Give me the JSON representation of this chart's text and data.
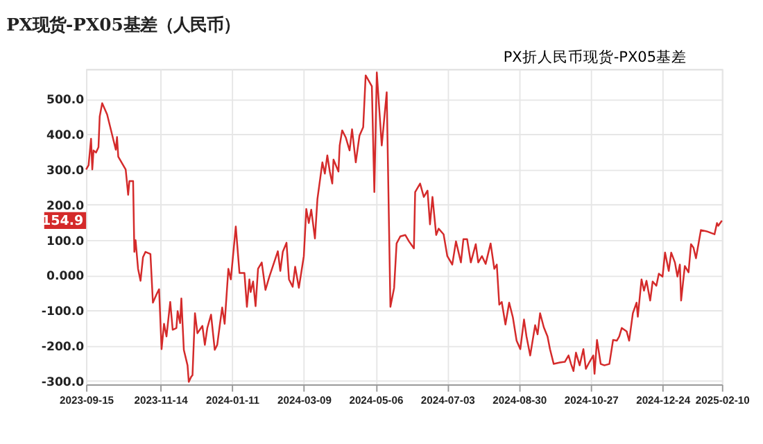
{
  "chart_data": {
    "type": "line",
    "title": "PX现货-PX05基差（人民币）",
    "legend": "top right",
    "grid": true,
    "marker": "none",
    "line_style": "solid",
    "xlim": [
      "2023-09-15",
      "2025-02-10"
    ],
    "xticks": [
      "2023-09-15",
      "2023-11-14",
      "2024-01-11",
      "2024-03-09",
      "2024-05-06",
      "2024-07-03",
      "2024-08-30",
      "2024-10-27",
      "2024-12-24",
      "2025-02-10"
    ],
    "ylim": [
      -310,
      585
    ],
    "yticks": [
      {
        "value": -300,
        "label": "-300.0"
      },
      {
        "value": -200,
        "label": "-200.0"
      },
      {
        "value": -100,
        "label": "-100.0"
      },
      {
        "value": 0,
        "label": "0.000"
      },
      {
        "value": 100,
        "label": "100.0"
      },
      {
        "value": 200,
        "label": "200.0"
      },
      {
        "value": 300,
        "label": "300.0"
      },
      {
        "value": 400,
        "label": "400.0"
      },
      {
        "value": 500,
        "label": "500.0"
      }
    ],
    "annotations": [
      "154.9"
    ],
    "x": [
      "2023-09-15",
      "2023-09-17",
      "2023-09-19",
      "2023-09-20",
      "2023-09-21",
      "2023-09-23",
      "2023-09-25",
      "2023-09-26",
      "2023-09-28",
      "2023-10-02",
      "2023-10-09",
      "2023-10-10",
      "2023-10-11",
      "2023-10-14",
      "2023-10-17",
      "2023-10-19",
      "2023-10-20",
      "2023-10-23",
      "2023-10-24",
      "2023-10-25",
      "2023-10-27",
      "2023-10-29",
      "2023-10-31",
      "2023-11-02",
      "2023-11-06",
      "2023-11-08",
      "2023-11-11",
      "2023-11-13",
      "2023-11-15",
      "2023-11-17",
      "2023-11-19",
      "2023-11-22",
      "2023-11-24",
      "2023-11-27",
      "2023-11-28",
      "2023-11-30",
      "2023-12-01",
      "2023-12-03",
      "2023-12-06",
      "2023-12-07",
      "2023-12-09",
      "2023-12-10",
      "2023-12-12",
      "2023-12-14",
      "2023-12-18",
      "2023-12-20",
      "2023-12-22",
      "2023-12-25",
      "2023-12-28",
      "2023-12-30",
      "2024-01-01",
      "2024-01-03",
      "2024-01-05",
      "2024-01-08",
      "2024-01-10",
      "2024-01-14",
      "2024-01-17",
      "2024-01-21",
      "2024-01-23",
      "2024-01-25",
      "2024-01-26",
      "2024-01-28",
      "2024-01-30",
      "2024-02-01",
      "2024-02-04",
      "2024-02-07",
      "2024-02-10",
      "2024-02-17",
      "2024-02-19",
      "2024-02-21",
      "2024-02-24",
      "2024-02-26",
      "2024-02-29",
      "2024-03-02",
      "2024-03-05",
      "2024-03-09",
      "2024-03-11",
      "2024-03-13",
      "2024-03-15",
      "2024-03-18",
      "2024-03-20",
      "2024-03-24",
      "2024-03-26",
      "2024-03-28",
      "2024-03-30",
      "2024-04-01",
      "2024-04-02",
      "2024-04-06",
      "2024-04-07",
      "2024-04-09",
      "2024-04-12",
      "2024-04-15",
      "2024-04-17",
      "2024-04-20",
      "2024-04-23",
      "2024-04-26",
      "2024-04-28",
      "2024-05-03",
      "2024-05-05",
      "2024-05-07",
      "2024-05-11",
      "2024-05-15",
      "2024-05-18",
      "2024-05-21",
      "2024-05-23",
      "2024-05-26",
      "2024-05-30",
      "2024-06-02",
      "2024-06-06",
      "2024-06-07",
      "2024-06-11",
      "2024-06-14",
      "2024-06-17",
      "2024-06-19",
      "2024-06-21",
      "2024-06-24",
      "2024-06-26",
      "2024-06-30",
      "2024-07-03",
      "2024-07-07",
      "2024-07-10",
      "2024-07-14",
      "2024-07-16",
      "2024-07-19",
      "2024-07-22",
      "2024-07-26",
      "2024-07-28",
      "2024-07-31",
      "2024-08-03",
      "2024-08-07",
      "2024-08-10",
      "2024-08-12",
      "2024-08-14",
      "2024-08-16",
      "2024-08-19",
      "2024-08-22",
      "2024-08-25",
      "2024-08-28",
      "2024-08-31",
      "2024-09-03",
      "2024-09-05",
      "2024-09-08",
      "2024-09-12",
      "2024-09-14",
      "2024-09-16",
      "2024-09-19",
      "2024-09-22",
      "2024-09-24",
      "2024-09-27",
      "2024-10-02",
      "2024-10-06",
      "2024-10-09",
      "2024-10-11",
      "2024-10-13",
      "2024-10-15",
      "2024-10-18",
      "2024-10-21",
      "2024-10-23",
      "2024-10-26",
      "2024-10-29",
      "2024-10-30",
      "2024-11-01",
      "2024-11-04",
      "2024-11-07",
      "2024-11-11",
      "2024-11-14",
      "2024-11-17",
      "2024-11-19",
      "2024-11-21",
      "2024-11-25",
      "2024-11-27",
      "2024-11-30",
      "2024-12-03",
      "2024-12-04",
      "2024-12-07",
      "2024-12-09",
      "2024-12-11",
      "2024-12-14",
      "2024-12-16",
      "2024-12-19",
      "2024-12-21",
      "2024-12-24",
      "2024-12-26",
      "2024-12-29",
      "2024-12-31",
      "2025-01-03",
      "2025-01-05",
      "2025-01-07",
      "2025-01-08",
      "2025-01-11",
      "2025-01-14",
      "2025-01-16",
      "2025-01-18",
      "2025-01-20",
      "2025-01-22",
      "2025-01-24",
      "2025-01-29",
      "2025-02-04",
      "2025-02-06",
      "2025-02-07",
      "2025-02-10"
    ],
    "series": [
      {
        "name": "PX折人民币现货-PX05基差",
        "color": "#d42a2a",
        "values": [
          300,
          312,
          387,
          300,
          354,
          348,
          363,
          450,
          488,
          456,
          356,
          392,
          336,
          318,
          300,
          228,
          267,
          267,
          66,
          99,
          18,
          -16,
          51,
          66,
          60,
          -78,
          -54,
          -40,
          -210,
          -138,
          -174,
          -76,
          -155,
          -150,
          -102,
          -136,
          -66,
          -212,
          -256,
          -303,
          -288,
          -284,
          -108,
          -165,
          -144,
          -198,
          -150,
          -112,
          -212,
          -198,
          -144,
          -92,
          -138,
          18,
          -12,
          138,
          6,
          6,
          -90,
          -12,
          -48,
          -18,
          -88,
          18,
          36,
          -42,
          -6,
          68,
          12,
          66,
          92,
          -12,
          -33,
          24,
          -36,
          54,
          188,
          148,
          186,
          104,
          216,
          320,
          288,
          340,
          294,
          260,
          328,
          294,
          368,
          411,
          390,
          354,
          414,
          320,
          396,
          420,
          567,
          536,
          236,
          575,
          368,
          519,
          -90,
          -36,
          90,
          110,
          114,
          96,
          76,
          236,
          260,
          222,
          240,
          144,
          222,
          114,
          132,
          116,
          54,
          30,
          96,
          36,
          102,
          102,
          36,
          88,
          36,
          54,
          32,
          90,
          18,
          30,
          -84,
          -76,
          -140,
          -78,
          -120,
          -186,
          -210,
          -126,
          -174,
          -228,
          -142,
          -168,
          -108,
          -148,
          -174,
          -210,
          -252,
          -248,
          -246,
          -228,
          -252,
          -272,
          -220,
          -256,
          -210,
          -266,
          -246,
          -228,
          -280,
          -184,
          -252,
          -256,
          -252,
          -184,
          -186,
          -174,
          -150,
          -160,
          -186,
          -108,
          -78,
          -118,
          -12,
          -44,
          -16,
          -72,
          -18,
          -30,
          4,
          -4,
          64,
          12,
          64,
          36,
          -4,
          30,
          -72,
          26,
          8,
          88,
          78,
          48,
          88,
          128,
          124,
          116,
          148,
          140,
          154.9
        ]
      }
    ]
  }
}
